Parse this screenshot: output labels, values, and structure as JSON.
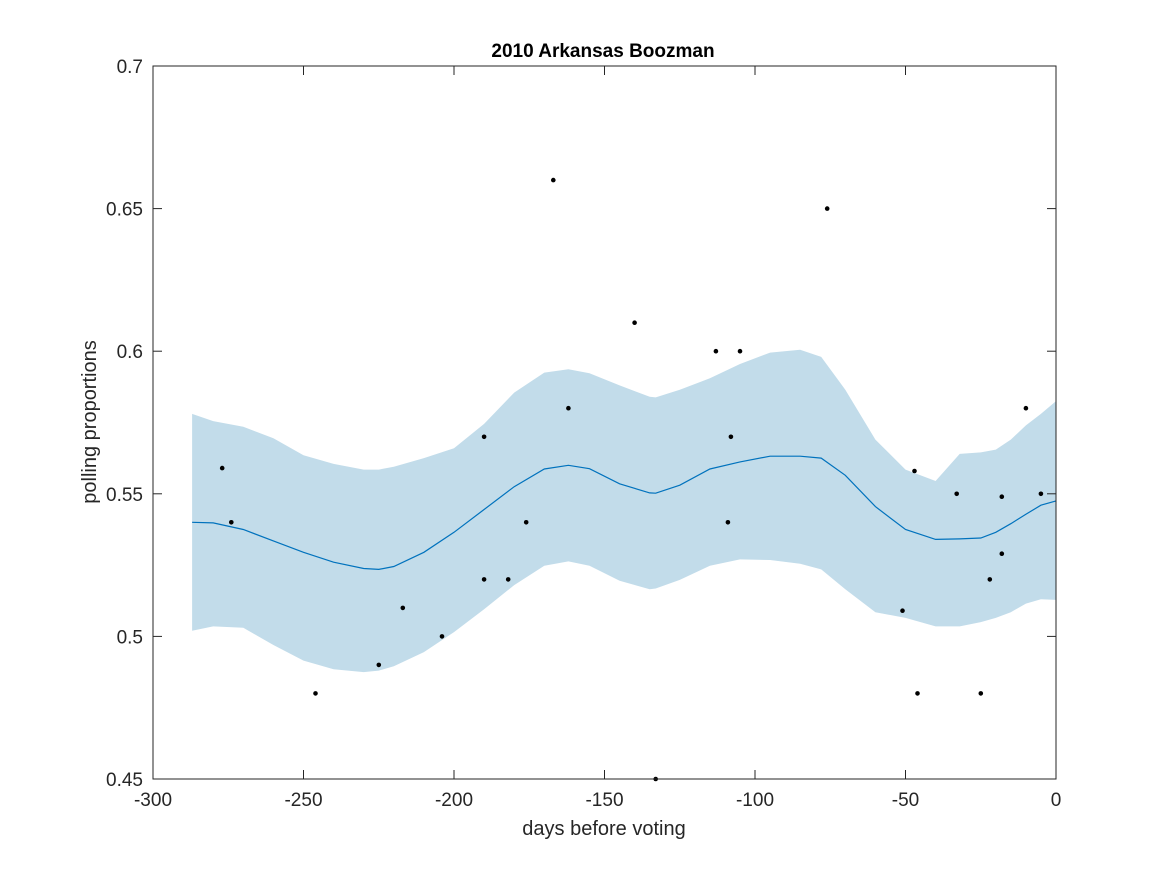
{
  "chart_data": {
    "type": "scatter",
    "title": "2010 Arkansas Boozman",
    "xlabel": "days before voting",
    "ylabel": "polling proportions",
    "xlim": [
      -300,
      0
    ],
    "ylim": [
      0.45,
      0.7
    ],
    "xticks": [
      -300,
      -250,
      -200,
      -150,
      -100,
      -50,
      0
    ],
    "yticks": [
      0.45,
      0.5,
      0.55,
      0.6,
      0.65,
      0.7
    ],
    "xtick_labels": [
      "-300",
      "-250",
      "-200",
      "-150",
      "-100",
      "-50",
      "0"
    ],
    "ytick_labels": [
      "0.45",
      "0.5",
      "0.55",
      "0.6",
      "0.65",
      "0.7"
    ],
    "grid": false,
    "colors": {
      "trend": "#0072bd",
      "band": "#c2dcea",
      "points": "#000000",
      "axes": "#262626"
    },
    "points": {
      "x": [
        -277,
        -274,
        -246,
        -225,
        -217,
        -204,
        -190,
        -190,
        -182,
        -176,
        -167,
        -162,
        -140,
        -133,
        -113,
        -109,
        -108,
        -105,
        -76,
        -51,
        -47,
        -46,
        -33,
        -25,
        -22,
        -18,
        -18,
        -10,
        -5
      ],
      "y": [
        0.559,
        0.54,
        0.48,
        0.49,
        0.51,
        0.5,
        0.57,
        0.52,
        0.52,
        0.54,
        0.66,
        0.58,
        0.61,
        0.45,
        0.6,
        0.54,
        0.57,
        0.6,
        0.65,
        0.509,
        0.558,
        0.48,
        0.55,
        0.48,
        0.52,
        0.529,
        0.549,
        0.58,
        0.55
      ]
    },
    "trend": {
      "x": [
        -287,
        -280,
        -270,
        -260,
        -250,
        -240,
        -230,
        -225,
        -220,
        -210,
        -200,
        -190,
        -180,
        -170,
        -162,
        -155,
        -145,
        -135,
        -133,
        -125,
        -115,
        -105,
        -95,
        -85,
        -78,
        -70,
        -60,
        -50,
        -40,
        -32,
        -25,
        -20,
        -15,
        -10,
        -5,
        0
      ],
      "y": [
        0.54,
        0.5398,
        0.5375,
        0.5335,
        0.5295,
        0.526,
        0.5238,
        0.5235,
        0.5245,
        0.5295,
        0.5365,
        0.5445,
        0.5525,
        0.5587,
        0.56,
        0.5588,
        0.5535,
        0.5503,
        0.5502,
        0.553,
        0.5587,
        0.5612,
        0.5632,
        0.5632,
        0.5625,
        0.5565,
        0.5455,
        0.5375,
        0.534,
        0.5342,
        0.5345,
        0.5365,
        0.5395,
        0.5428,
        0.546,
        0.5475
      ]
    },
    "band": {
      "x": [
        -287,
        -280,
        -270,
        -260,
        -250,
        -240,
        -230,
        -225,
        -220,
        -210,
        -200,
        -190,
        -180,
        -170,
        -162,
        -155,
        -145,
        -135,
        -133,
        -125,
        -115,
        -105,
        -95,
        -85,
        -78,
        -70,
        -60,
        -50,
        -40,
        -32,
        -25,
        -20,
        -15,
        -10,
        -5,
        0
      ],
      "upper": [
        0.578,
        0.5755,
        0.5735,
        0.5695,
        0.5635,
        0.5605,
        0.5585,
        0.5585,
        0.5595,
        0.5625,
        0.566,
        0.5745,
        0.5855,
        0.5925,
        0.5937,
        0.5923,
        0.588,
        0.584,
        0.5838,
        0.5865,
        0.5905,
        0.5955,
        0.5995,
        0.6005,
        0.598,
        0.5865,
        0.569,
        0.5585,
        0.5545,
        0.564,
        0.5645,
        0.5655,
        0.569,
        0.574,
        0.578,
        0.5825
      ],
      "lower": [
        0.502,
        0.5035,
        0.503,
        0.497,
        0.4915,
        0.4885,
        0.4875,
        0.488,
        0.4895,
        0.4945,
        0.5015,
        0.5095,
        0.518,
        0.5248,
        0.5263,
        0.5248,
        0.5195,
        0.5165,
        0.5168,
        0.5198,
        0.5248,
        0.527,
        0.5268,
        0.5255,
        0.5235,
        0.5165,
        0.5085,
        0.5065,
        0.5035,
        0.5035,
        0.505,
        0.5065,
        0.5085,
        0.5115,
        0.513,
        0.5128
      ]
    }
  }
}
